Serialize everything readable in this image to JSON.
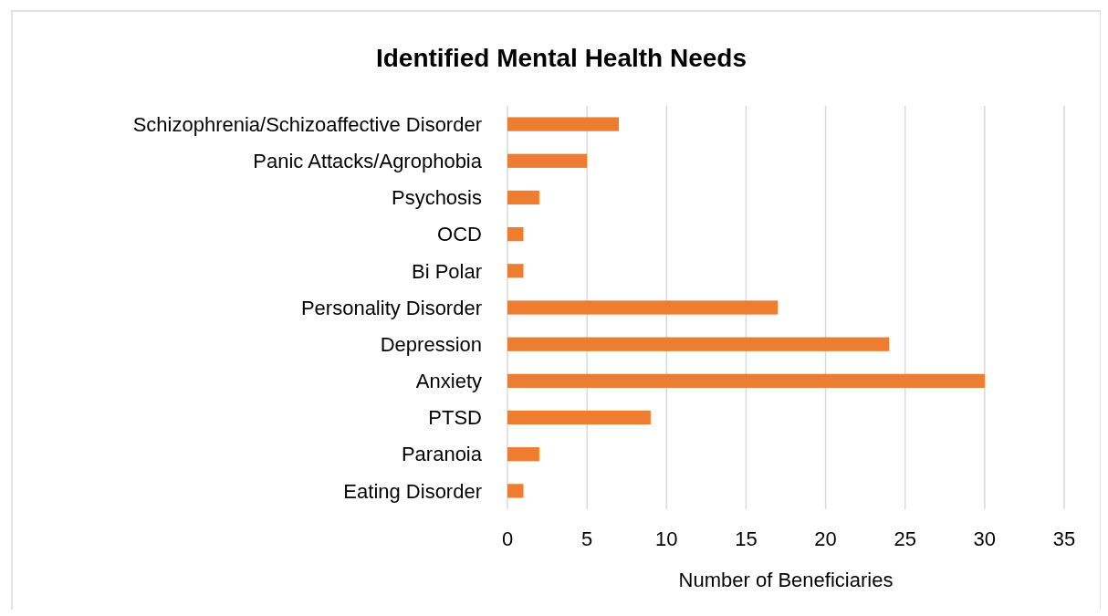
{
  "chart_data": {
    "type": "bar",
    "orientation": "horizontal",
    "title": "Identified Mental Health Needs",
    "xlabel": "Number of Beneficiaries",
    "categories": [
      "Schizophrenia/Schizoaffective Disorder",
      "Panic Attacks/Agrophobia",
      "Psychosis",
      "OCD",
      "Bi Polar",
      "Personality Disorder",
      "Depression",
      "Anxiety",
      "PTSD",
      "Paranoia",
      "Eating Disorder"
    ],
    "values": [
      7,
      5,
      2,
      1,
      1,
      17,
      24,
      30,
      9,
      2,
      1
    ],
    "color": "#ed7d31",
    "xlim": [
      0,
      35
    ],
    "xticks": [
      0,
      5,
      10,
      15,
      20,
      25,
      30,
      35
    ],
    "grid": "x"
  }
}
